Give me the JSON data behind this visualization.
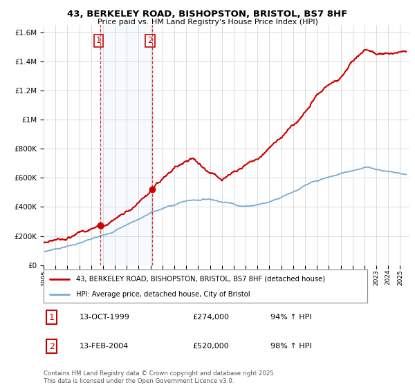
{
  "title": "43, BERKELEY ROAD, BISHOPSTON, BRISTOL, BS7 8HF",
  "subtitle": "Price paid vs. HM Land Registry's House Price Index (HPI)",
  "legend_line1": "43, BERKELEY ROAD, BISHOPSTON, BRISTOL, BS7 8HF (detached house)",
  "legend_line2": "HPI: Average price, detached house, City of Bristol",
  "annotation1_label": "1",
  "annotation1_date": "13-OCT-1999",
  "annotation1_price": "£274,000",
  "annotation1_hpi": "94% ↑ HPI",
  "annotation2_label": "2",
  "annotation2_date": "13-FEB-2004",
  "annotation2_price": "£520,000",
  "annotation2_hpi": "98% ↑ HPI",
  "copyright": "Contains HM Land Registry data © Crown copyright and database right 2025.\nThis data is licensed under the Open Government Licence v3.0.",
  "sale1_year": 1999.79,
  "sale2_year": 2004.12,
  "sale1_price": 274000,
  "sale2_price": 520000,
  "red_line_color": "#cc0000",
  "blue_line_color": "#7aadd4",
  "shading_color": "#ddeeff",
  "background_color": "#ffffff",
  "grid_color": "#cccccc",
  "ylim_max": 1650000,
  "yticks": [
    0,
    200000,
    400000,
    600000,
    800000,
    1000000,
    1200000,
    1400000,
    1600000
  ]
}
